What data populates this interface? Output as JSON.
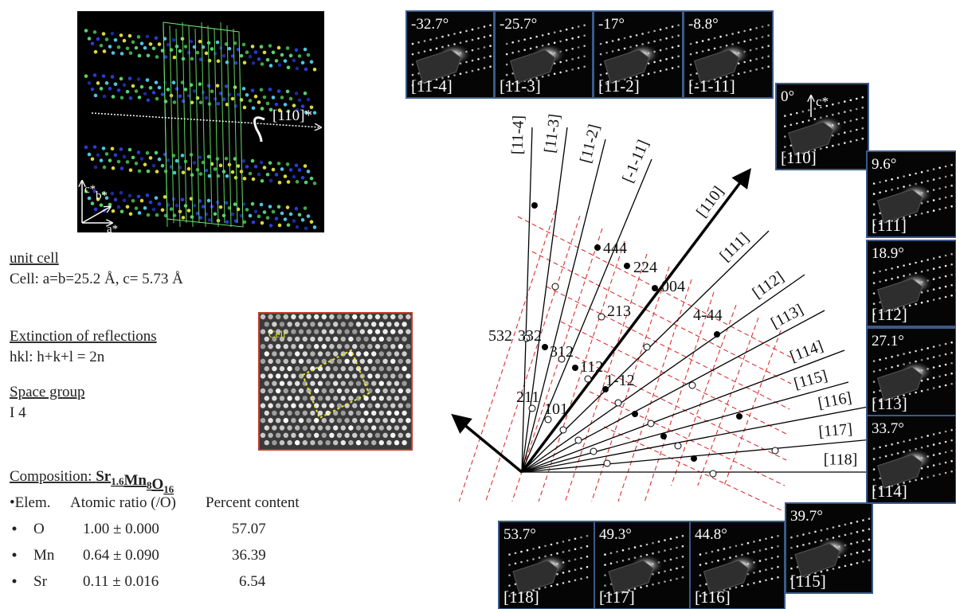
{
  "crystal_model": {
    "rotation_axis": "[110]*",
    "axes": [
      "c*",
      "b*",
      "a*"
    ]
  },
  "unit_cell": {
    "heading": "unit cell",
    "text": "Cell: a=b=25.2 Å, c= 5.73 Å"
  },
  "extinction": {
    "heading": "Extinction of reflections",
    "text": "hkl: h+k+l = 2n"
  },
  "space_group": {
    "heading": "Space group",
    "text": "I 4"
  },
  "hrtem": {
    "label": "Cell"
  },
  "composition": {
    "heading": "Composition:",
    "formula": [
      {
        "symbol": "Sr",
        "subscript": "1.6"
      },
      {
        "symbol": "Mn",
        "subscript": "8"
      },
      {
        "symbol": "O",
        "subscript": "16"
      }
    ],
    "columns": [
      "•Elem.",
      "Atomic ratio (/O)",
      "Percent content"
    ],
    "rows": [
      [
        "O",
        "1.00 ± 0.000",
        "57.07"
      ],
      [
        "Mn",
        "0.64 ± 0.090",
        "36.39"
      ],
      [
        "Sr",
        "0.11 ± 0.016",
        "6.54"
      ]
    ]
  },
  "diagram": {
    "zone_axes": [
      "[11-4]",
      "[11-3]",
      "[11-2]",
      "[-1-11]",
      "[110]",
      "[111]",
      "[112]",
      "[113]",
      "[114]",
      "[115]",
      "[116]",
      "[117]",
      "[118]"
    ],
    "reflections": [
      "532",
      "332",
      "312",
      "112",
      "1-12",
      "211",
      "101",
      "213",
      "444",
      "224",
      "004",
      "4-44"
    ]
  },
  "saed_patterns": [
    {
      "angle": "-32.7°",
      "zone": "[11-4]"
    },
    {
      "angle": "-25.7°",
      "zone": "[11-3]"
    },
    {
      "angle": "-17°",
      "zone": "[11-2]"
    },
    {
      "angle": "-8.8°",
      "zone": "[-1-11]"
    },
    {
      "angle": "0°",
      "zone": "[110]",
      "axis": "c*"
    },
    {
      "angle": "9.6°",
      "zone": "[111]"
    },
    {
      "angle": "18.9°",
      "zone": "[112]"
    },
    {
      "angle": "27.1°",
      "zone": "[113]"
    },
    {
      "angle": "33.7°",
      "zone": "[114]"
    },
    {
      "angle": "39.7°",
      "zone": "[115]"
    },
    {
      "angle": "44.8°",
      "zone": "[116]"
    },
    {
      "angle": "49.3°",
      "zone": "[117]"
    },
    {
      "angle": "53.7°",
      "zone": "[118]"
    }
  ]
}
